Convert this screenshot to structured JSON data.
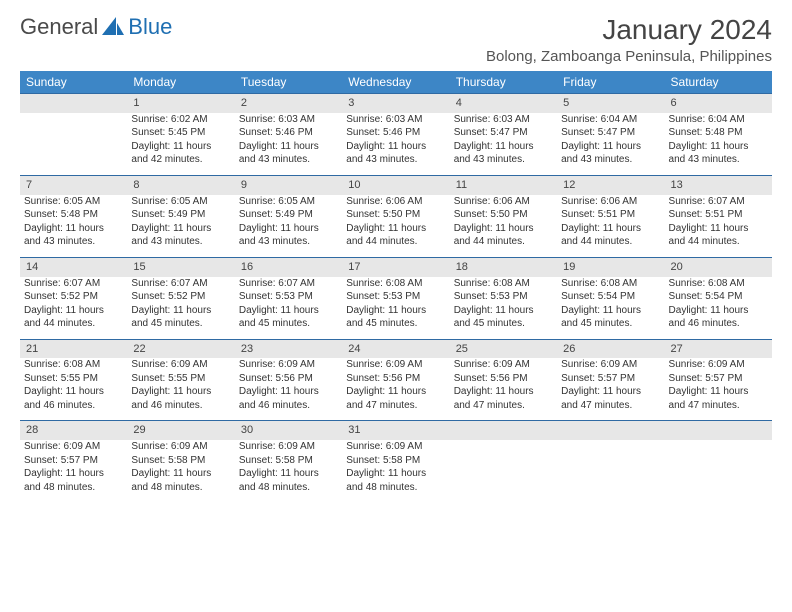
{
  "brand": {
    "part1": "General",
    "part2": "Blue"
  },
  "colors": {
    "header_bg": "#3d86c6",
    "header_text": "#ffffff",
    "daynum_bg": "#e7e7e7",
    "row_border": "#2f6aa3",
    "logo_blue": "#1f6fb2",
    "body_text": "#333333",
    "title_text": "#444444"
  },
  "title": "January 2024",
  "location": "Bolong, Zamboanga Peninsula, Philippines",
  "weekdays": [
    "Sunday",
    "Monday",
    "Tuesday",
    "Wednesday",
    "Thursday",
    "Friday",
    "Saturday"
  ],
  "weeks": [
    {
      "nums": [
        "",
        "1",
        "2",
        "3",
        "4",
        "5",
        "6"
      ],
      "cells": [
        null,
        {
          "sunrise": "Sunrise: 6:02 AM",
          "sunset": "Sunset: 5:45 PM",
          "day1": "Daylight: 11 hours",
          "day2": "and 42 minutes."
        },
        {
          "sunrise": "Sunrise: 6:03 AM",
          "sunset": "Sunset: 5:46 PM",
          "day1": "Daylight: 11 hours",
          "day2": "and 43 minutes."
        },
        {
          "sunrise": "Sunrise: 6:03 AM",
          "sunset": "Sunset: 5:46 PM",
          "day1": "Daylight: 11 hours",
          "day2": "and 43 minutes."
        },
        {
          "sunrise": "Sunrise: 6:03 AM",
          "sunset": "Sunset: 5:47 PM",
          "day1": "Daylight: 11 hours",
          "day2": "and 43 minutes."
        },
        {
          "sunrise": "Sunrise: 6:04 AM",
          "sunset": "Sunset: 5:47 PM",
          "day1": "Daylight: 11 hours",
          "day2": "and 43 minutes."
        },
        {
          "sunrise": "Sunrise: 6:04 AM",
          "sunset": "Sunset: 5:48 PM",
          "day1": "Daylight: 11 hours",
          "day2": "and 43 minutes."
        }
      ]
    },
    {
      "nums": [
        "7",
        "8",
        "9",
        "10",
        "11",
        "12",
        "13"
      ],
      "cells": [
        {
          "sunrise": "Sunrise: 6:05 AM",
          "sunset": "Sunset: 5:48 PM",
          "day1": "Daylight: 11 hours",
          "day2": "and 43 minutes."
        },
        {
          "sunrise": "Sunrise: 6:05 AM",
          "sunset": "Sunset: 5:49 PM",
          "day1": "Daylight: 11 hours",
          "day2": "and 43 minutes."
        },
        {
          "sunrise": "Sunrise: 6:05 AM",
          "sunset": "Sunset: 5:49 PM",
          "day1": "Daylight: 11 hours",
          "day2": "and 43 minutes."
        },
        {
          "sunrise": "Sunrise: 6:06 AM",
          "sunset": "Sunset: 5:50 PM",
          "day1": "Daylight: 11 hours",
          "day2": "and 44 minutes."
        },
        {
          "sunrise": "Sunrise: 6:06 AM",
          "sunset": "Sunset: 5:50 PM",
          "day1": "Daylight: 11 hours",
          "day2": "and 44 minutes."
        },
        {
          "sunrise": "Sunrise: 6:06 AM",
          "sunset": "Sunset: 5:51 PM",
          "day1": "Daylight: 11 hours",
          "day2": "and 44 minutes."
        },
        {
          "sunrise": "Sunrise: 6:07 AM",
          "sunset": "Sunset: 5:51 PM",
          "day1": "Daylight: 11 hours",
          "day2": "and 44 minutes."
        }
      ]
    },
    {
      "nums": [
        "14",
        "15",
        "16",
        "17",
        "18",
        "19",
        "20"
      ],
      "cells": [
        {
          "sunrise": "Sunrise: 6:07 AM",
          "sunset": "Sunset: 5:52 PM",
          "day1": "Daylight: 11 hours",
          "day2": "and 44 minutes."
        },
        {
          "sunrise": "Sunrise: 6:07 AM",
          "sunset": "Sunset: 5:52 PM",
          "day1": "Daylight: 11 hours",
          "day2": "and 45 minutes."
        },
        {
          "sunrise": "Sunrise: 6:07 AM",
          "sunset": "Sunset: 5:53 PM",
          "day1": "Daylight: 11 hours",
          "day2": "and 45 minutes."
        },
        {
          "sunrise": "Sunrise: 6:08 AM",
          "sunset": "Sunset: 5:53 PM",
          "day1": "Daylight: 11 hours",
          "day2": "and 45 minutes."
        },
        {
          "sunrise": "Sunrise: 6:08 AM",
          "sunset": "Sunset: 5:53 PM",
          "day1": "Daylight: 11 hours",
          "day2": "and 45 minutes."
        },
        {
          "sunrise": "Sunrise: 6:08 AM",
          "sunset": "Sunset: 5:54 PM",
          "day1": "Daylight: 11 hours",
          "day2": "and 45 minutes."
        },
        {
          "sunrise": "Sunrise: 6:08 AM",
          "sunset": "Sunset: 5:54 PM",
          "day1": "Daylight: 11 hours",
          "day2": "and 46 minutes."
        }
      ]
    },
    {
      "nums": [
        "21",
        "22",
        "23",
        "24",
        "25",
        "26",
        "27"
      ],
      "cells": [
        {
          "sunrise": "Sunrise: 6:08 AM",
          "sunset": "Sunset: 5:55 PM",
          "day1": "Daylight: 11 hours",
          "day2": "and 46 minutes."
        },
        {
          "sunrise": "Sunrise: 6:09 AM",
          "sunset": "Sunset: 5:55 PM",
          "day1": "Daylight: 11 hours",
          "day2": "and 46 minutes."
        },
        {
          "sunrise": "Sunrise: 6:09 AM",
          "sunset": "Sunset: 5:56 PM",
          "day1": "Daylight: 11 hours",
          "day2": "and 46 minutes."
        },
        {
          "sunrise": "Sunrise: 6:09 AM",
          "sunset": "Sunset: 5:56 PM",
          "day1": "Daylight: 11 hours",
          "day2": "and 47 minutes."
        },
        {
          "sunrise": "Sunrise: 6:09 AM",
          "sunset": "Sunset: 5:56 PM",
          "day1": "Daylight: 11 hours",
          "day2": "and 47 minutes."
        },
        {
          "sunrise": "Sunrise: 6:09 AM",
          "sunset": "Sunset: 5:57 PM",
          "day1": "Daylight: 11 hours",
          "day2": "and 47 minutes."
        },
        {
          "sunrise": "Sunrise: 6:09 AM",
          "sunset": "Sunset: 5:57 PM",
          "day1": "Daylight: 11 hours",
          "day2": "and 47 minutes."
        }
      ]
    },
    {
      "nums": [
        "28",
        "29",
        "30",
        "31",
        "",
        "",
        ""
      ],
      "cells": [
        {
          "sunrise": "Sunrise: 6:09 AM",
          "sunset": "Sunset: 5:57 PM",
          "day1": "Daylight: 11 hours",
          "day2": "and 48 minutes."
        },
        {
          "sunrise": "Sunrise: 6:09 AM",
          "sunset": "Sunset: 5:58 PM",
          "day1": "Daylight: 11 hours",
          "day2": "and 48 minutes."
        },
        {
          "sunrise": "Sunrise: 6:09 AM",
          "sunset": "Sunset: 5:58 PM",
          "day1": "Daylight: 11 hours",
          "day2": "and 48 minutes."
        },
        {
          "sunrise": "Sunrise: 6:09 AM",
          "sunset": "Sunset: 5:58 PM",
          "day1": "Daylight: 11 hours",
          "day2": "and 48 minutes."
        },
        null,
        null,
        null
      ]
    }
  ]
}
